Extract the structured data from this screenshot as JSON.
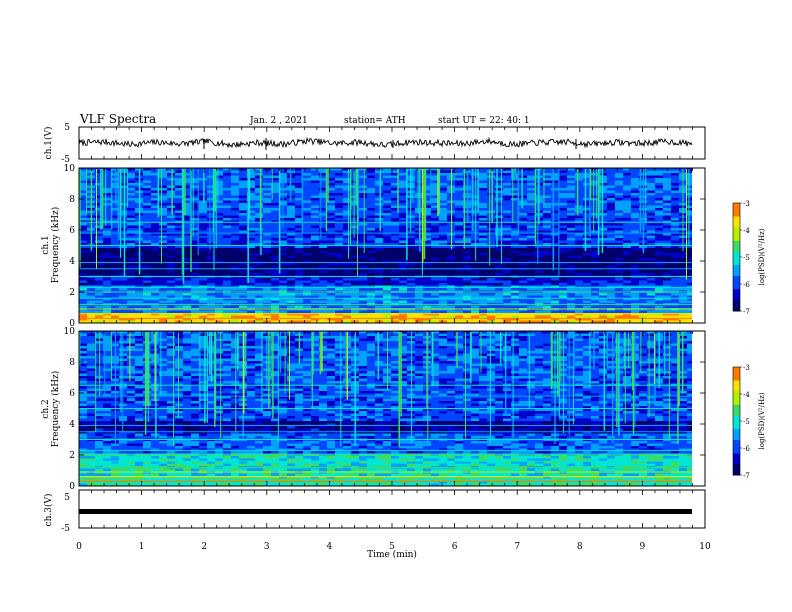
{
  "header": {
    "title": "VLF Spectra",
    "date": "Jan. 2 , 2021",
    "station": "station= ATH",
    "start": "start UT = 22: 40: 1"
  },
  "colors": {
    "colormap": [
      "#00006a",
      "#0000c8",
      "#0046ff",
      "#00a0ff",
      "#00e6d2",
      "#3cdc64",
      "#b4f000",
      "#ffe100",
      "#ff7800",
      "#dc0000",
      "#ffffff"
    ],
    "trace": "#000000",
    "axes": "#000000"
  },
  "chart_data": [
    {
      "type": "line",
      "ylabel": "ch.1(V)",
      "ylim": [
        -5,
        5
      ],
      "yticks": [
        "5",
        "-5"
      ],
      "xlim": [
        0,
        10
      ],
      "description_level": "noisy trace near 0 V",
      "series": [
        {
          "values": [
            0,
            0.3,
            -0.4,
            0.2,
            -0.2,
            0.4,
            -0.5,
            0.1,
            -0.3,
            0.6,
            -0.1,
            0.2,
            -0.6,
            0.3,
            0.0,
            -0.2,
            0.5,
            -0.4,
            0.1,
            0.3,
            -0.3,
            0.2,
            -0.1,
            0.4,
            -0.2
          ]
        }
      ]
    },
    {
      "type": "heatmap",
      "ylabel_top": "ch.1",
      "ylabel_bottom": "Frequency (kHz)",
      "ylim": [
        0,
        10
      ],
      "yticks": [
        "0",
        "2",
        "4",
        "6",
        "8",
        "10"
      ],
      "xlim": [
        0,
        10
      ],
      "colorbar": {
        "label": "log(PSD)(V²/Hz)",
        "range": [
          -7,
          -3
        ],
        "ticks": [
          "-3",
          "-4",
          "-5",
          "-6",
          "-7"
        ]
      }
    },
    {
      "type": "heatmap",
      "ylabel_top": "ch.2",
      "ylabel_bottom": "Frequency (kHz)",
      "ylim": [
        0,
        10
      ],
      "yticks": [
        "0",
        "2",
        "4",
        "6",
        "8",
        "10"
      ],
      "xlim": [
        0,
        10
      ],
      "colorbar": {
        "label": "log(PSD)(V²/Hz)",
        "range": [
          -7,
          -3
        ],
        "ticks": [
          "-3",
          "-4",
          "-5",
          "-6",
          "-7"
        ]
      }
    },
    {
      "type": "line",
      "ylabel": "ch.3(V)",
      "ylim": [
        -5,
        5
      ],
      "yticks": [
        "5",
        "-5"
      ],
      "xlim": [
        0,
        10
      ],
      "xlabel": "Time (min)",
      "xticks": [
        "0",
        "1",
        "2",
        "3",
        "4",
        "5",
        "6",
        "7",
        "8",
        "9",
        "10"
      ],
      "series": [
        {
          "values": [
            0,
            0
          ]
        }
      ]
    }
  ]
}
